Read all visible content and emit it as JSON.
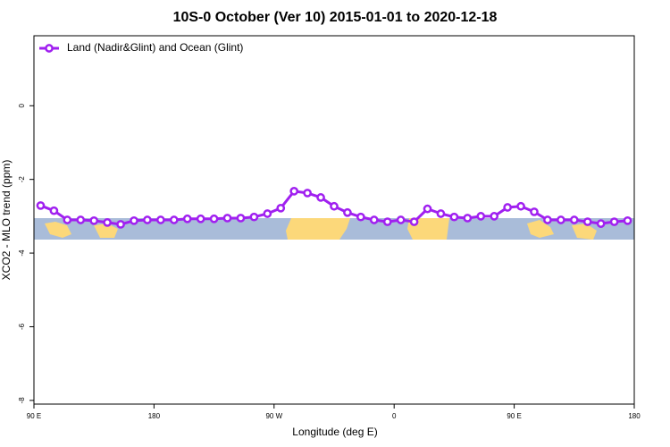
{
  "chart_data": {
    "type": "line",
    "title": "10S-0 October (Ver 10)   2015-01-01 to 2020-12-18",
    "x_label": "Longitude (deg E)",
    "y_label": "XCO2 - MLO trend (ppm)",
    "x": [
      95,
      105,
      115,
      125,
      135,
      145,
      155,
      165,
      175,
      185,
      195,
      205,
      215,
      225,
      235,
      245,
      255,
      265,
      275,
      285,
      295,
      305,
      315,
      325,
      335,
      345,
      355,
      365,
      375,
      385,
      395,
      405,
      415,
      425,
      435,
      445,
      455,
      465,
      475,
      485,
      495,
      505,
      515,
      525,
      535
    ],
    "series": [
      {
        "name": "Land (Nadir&Glint) and Ocean (Glint)",
        "color": "#a020f0",
        "values": [
          -2.71,
          -2.85,
          -3.1,
          -3.1,
          -3.12,
          -3.17,
          -3.22,
          -3.12,
          -3.1,
          -3.1,
          -3.1,
          -3.07,
          -3.07,
          -3.07,
          -3.05,
          -3.05,
          -3.02,
          -2.93,
          -2.78,
          -2.32,
          -2.37,
          -2.49,
          -2.73,
          -2.9,
          -3.02,
          -3.1,
          -3.15,
          -3.1,
          -3.15,
          -2.8,
          -2.93,
          -3.02,
          -3.05,
          -3.0,
          -3.0,
          -2.76,
          -2.73,
          -2.88,
          -3.1,
          -3.1,
          -3.1,
          -3.15,
          -3.2,
          -3.15,
          -3.12
        ]
      }
    ],
    "xlim": [
      90,
      540
    ],
    "xticks": [
      {
        "value": 90,
        "label": "90 E"
      },
      180,
      {
        "value": 270,
        "label": "90 W"
      },
      {
        "value": 360,
        "label": "0"
      },
      {
        "value": 450,
        "label": "90 E"
      },
      {
        "value": 540,
        "label": "180"
      }
    ],
    "ylim": [
      -8.1,
      1.9
    ],
    "yticks": [
      0,
      -2,
      -4,
      -6,
      -8
    ],
    "legend": "top-left"
  }
}
